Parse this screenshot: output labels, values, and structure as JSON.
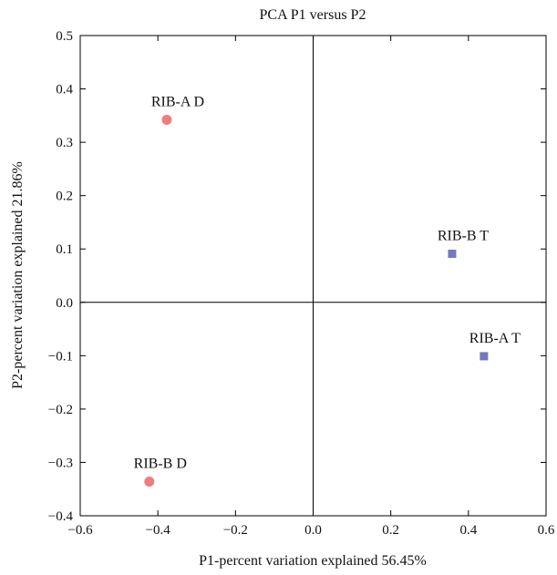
{
  "chart_data": {
    "type": "scatter",
    "title": "PCA P1 versus P2",
    "xlabel": "P1-percent variation explained 56.45%",
    "ylabel": "P2-percent variation explained 21.86%",
    "xlim": [
      -0.6,
      0.6
    ],
    "ylim": [
      -0.4,
      0.5
    ],
    "x_ticks": [
      "−0.6",
      "−0.4",
      "−0.2",
      "0.0",
      "0.2",
      "0.4",
      "0.6"
    ],
    "x_tick_values": [
      -0.6,
      -0.4,
      -0.2,
      0.0,
      0.2,
      0.4,
      0.6
    ],
    "y_ticks": [
      "−0.4",
      "−0.3",
      "−0.2",
      "−0.1",
      "0.0",
      "0.1",
      "0.2",
      "0.3",
      "0.4",
      "0.5"
    ],
    "y_tick_values": [
      -0.4,
      -0.3,
      -0.2,
      -0.1,
      0.0,
      0.1,
      0.2,
      0.3,
      0.4,
      0.5
    ],
    "reference_lines": {
      "x": 0,
      "y": 0
    },
    "grid": false,
    "points": [
      {
        "label": "RIB-A D",
        "x": -0.377,
        "y": 0.342,
        "marker": "circle",
        "color": "#f07c7c"
      },
      {
        "label": "RIB-B D",
        "x": -0.422,
        "y": -0.336,
        "marker": "circle",
        "color": "#f07c7c"
      },
      {
        "label": "RIB-B T",
        "x": 0.358,
        "y": 0.091,
        "marker": "square",
        "color": "#7479be"
      },
      {
        "label": "RIB-A T",
        "x": 0.44,
        "y": -0.101,
        "marker": "square",
        "color": "#7479be"
      }
    ]
  }
}
